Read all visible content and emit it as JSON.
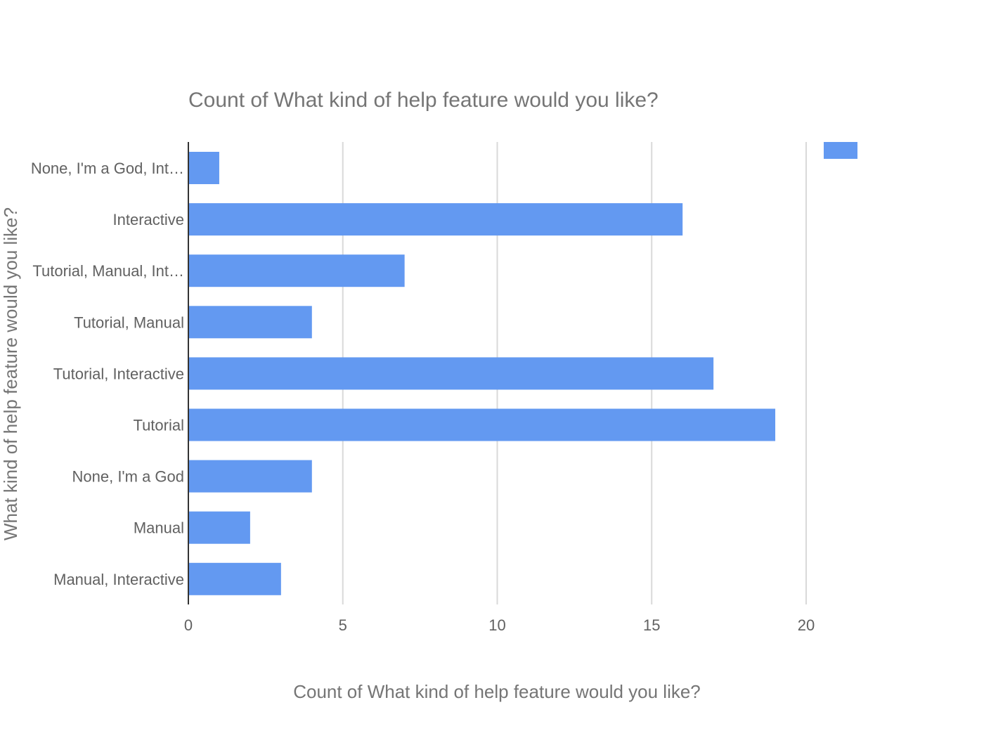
{
  "chart_data": {
    "type": "bar",
    "orientation": "horizontal",
    "title": "Count of What kind of help feature would you like?",
    "xlabel": "Count of What kind of help feature would you like?",
    "ylabel": "What kind of help feature would you like?",
    "categories": [
      "None, I'm a God, Int…",
      "Interactive",
      "Tutorial, Manual, Int…",
      "Tutorial, Manual",
      "Tutorial, Interactive",
      "Tutorial",
      "None, I'm a God",
      "Manual",
      "Manual, Interactive"
    ],
    "series": [
      {
        "values": [
          1,
          16,
          7,
          4,
          17,
          19,
          4,
          2,
          3
        ]
      }
    ],
    "xlim": [
      0,
      20
    ],
    "xticks": [
      "0",
      "5",
      "10",
      "15",
      "20"
    ],
    "grid": true,
    "legend": "top-right",
    "colors": {
      "bar": "#6399f1",
      "grid": "#d9d9d9",
      "baseline": "#333333",
      "text": "#757575"
    }
  }
}
